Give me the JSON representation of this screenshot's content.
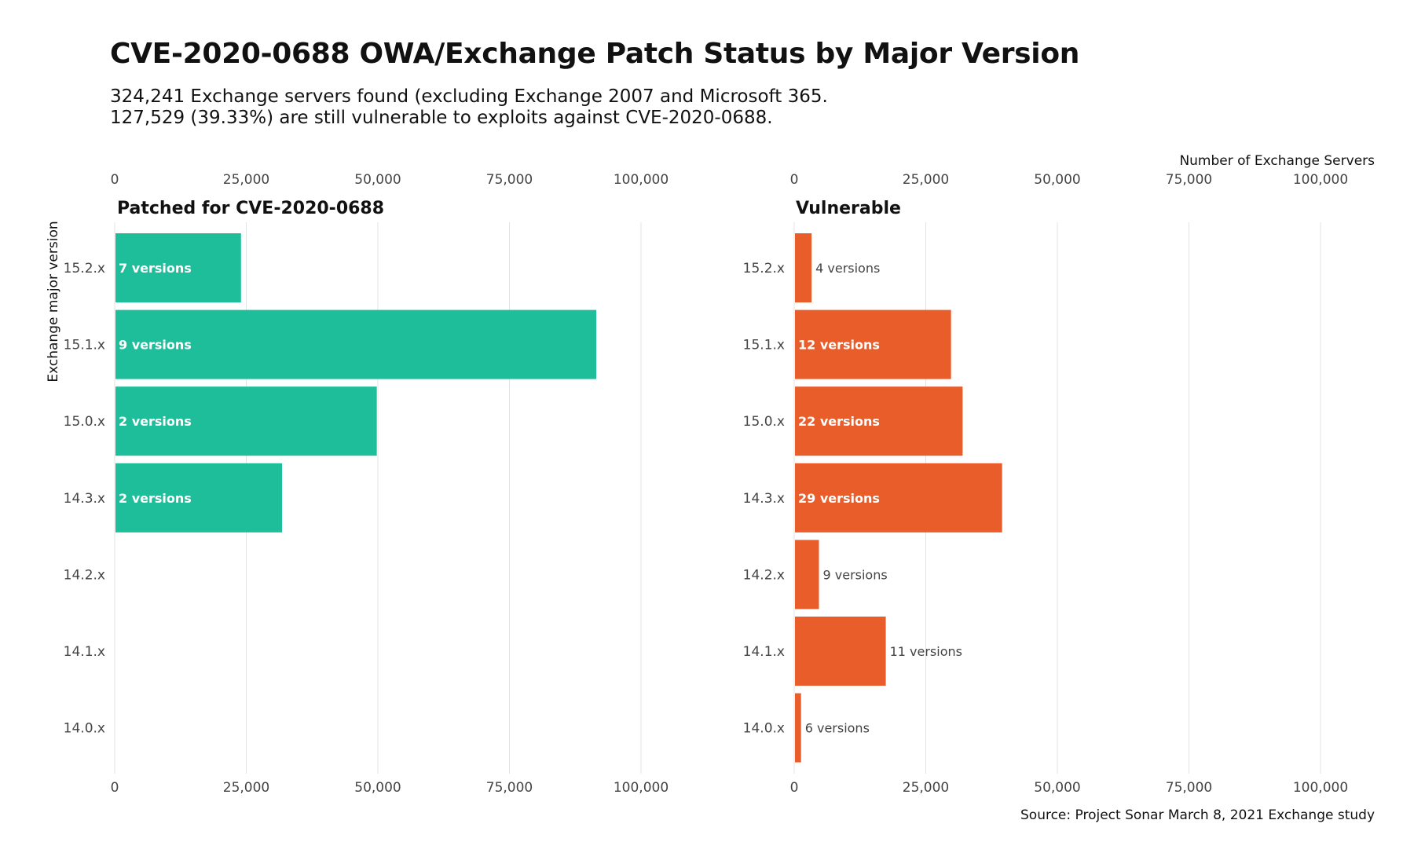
{
  "title": "CVE-2020-0688 OWA/Exchange Patch Status by Major Version",
  "subtitle_line1": "324,241 Exchange servers found (excluding Exchange 2007 and Microsoft 365.",
  "subtitle_line2": "127,529 (39.33%) are still vulnerable to exploits against CVE-2020-0688.",
  "x_axis_title": "Number of Exchange Servers",
  "y_axis_title": "Exchange major version",
  "source": "Source: Project Sonar March 8, 2021 Exchange study",
  "colors": {
    "patched": "#1fbe9b",
    "vulnerable": "#e85d2a",
    "grid": "#e3e3e3"
  },
  "chart_data": {
    "type": "bar",
    "orientation": "horizontal",
    "categories": [
      "15.2.x",
      "15.1.x",
      "15.0.x",
      "14.3.x",
      "14.2.x",
      "14.1.x",
      "14.0.x"
    ],
    "xlim": [
      0,
      110000
    ],
    "xticks": [
      0,
      25000,
      50000,
      75000,
      100000
    ],
    "xtick_labels": [
      "0",
      "25,000",
      "50,000",
      "75,000",
      "100,000"
    ],
    "grid": true,
    "series": [
      {
        "name": "Patched for CVE-2020-0688",
        "color": "#1fbe9b",
        "values": [
          24000,
          91500,
          49800,
          31800,
          null,
          null,
          null
        ],
        "labels": [
          "7 versions",
          "9 versions",
          "2 versions",
          "2 versions",
          "",
          "",
          ""
        ]
      },
      {
        "name": "Vulnerable",
        "color": "#e85d2a",
        "values": [
          3300,
          29800,
          32000,
          39500,
          4700,
          17400,
          1300
        ],
        "labels": [
          "4 versions",
          "12 versions",
          "22 versions",
          "29 versions",
          "9 versions",
          "11 versions",
          "6 versions"
        ]
      }
    ]
  }
}
